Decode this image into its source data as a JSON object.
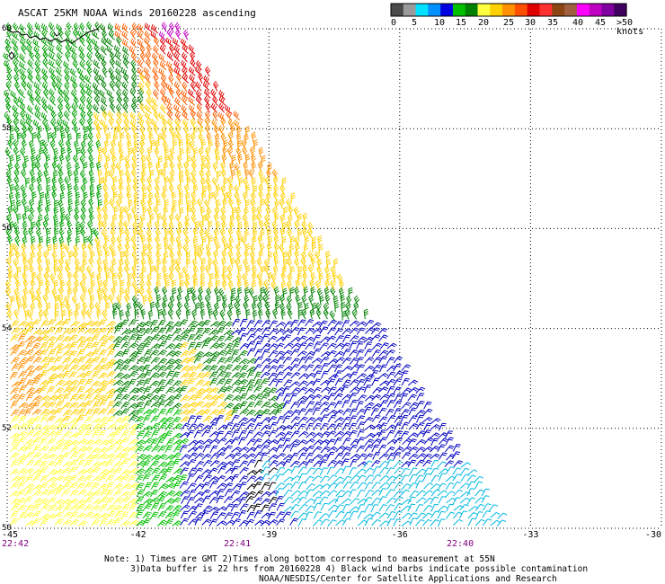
{
  "title": "ASCAT 25KM NOAA Winds 20160228 ascending",
  "legend": {
    "colors": [
      "#4a4a4a",
      "#9a9a9a",
      "#00e0ff",
      "#0090ff",
      "#0000e0",
      "#00c000",
      "#008000",
      "#ffff40",
      "#ffd000",
      "#ff9000",
      "#ff5000",
      "#e00000",
      "#ff3030",
      "#8b4513",
      "#a06040",
      "#ff00ff",
      "#c000c0",
      "#8000a0",
      "#400060"
    ],
    "labels": [
      "0",
      "5",
      "10",
      "15",
      "20",
      "25",
      "30",
      "35",
      "40",
      "45",
      ">50 knots"
    ]
  },
  "axes": {
    "lat_labels": [
      "60",
      "58",
      "56",
      "54",
      "52",
      "50"
    ],
    "lon_labels": [
      "-45",
      "-42",
      "-39",
      "-36",
      "-33",
      "-30"
    ],
    "time_labels": [
      "22:42",
      "22:41",
      "22:40"
    ]
  },
  "notes": {
    "line1": "Note: 1) Times are GMT 2)Times along bottom correspond to measurement at 55N",
    "line2": "3)Data buffer is 22 hrs from 20160228 4) Black wind barbs indicate possible contamination",
    "line3": "NOAA/NESDIS/Center for Satellite Applications and Research"
  },
  "map_data": {
    "lat_range": [
      50,
      60
    ],
    "lon_range": [
      -45,
      -30
    ],
    "wind_speed_zones": [
      {
        "region": "north-east edge",
        "speed_kt": 40,
        "color": "#c000c0"
      },
      {
        "region": "north strip",
        "speed_kt": 32,
        "color": "#e00000"
      },
      {
        "region": "north-center",
        "speed_kt": 27,
        "color": "#ff9000"
      },
      {
        "region": "west",
        "speed_kt": 18,
        "color": "#008000"
      },
      {
        "region": "center",
        "speed_kt": 22,
        "color": "#ffd000"
      },
      {
        "region": "south-center",
        "speed_kt": 17,
        "color": "#008000"
      },
      {
        "region": "south-east",
        "speed_kt": 12,
        "color": "#0000c0"
      },
      {
        "region": "far south",
        "speed_kt": 8,
        "color": "#00c0e0"
      }
    ]
  }
}
